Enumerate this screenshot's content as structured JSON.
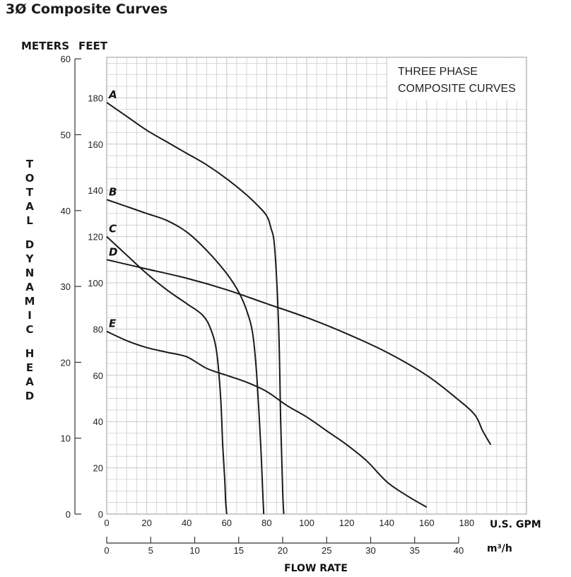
{
  "title": "3Ø Composite Curves",
  "chart_data": {
    "type": "line",
    "title": "3Ø Composite Curves",
    "annotation_lines": [
      "THREE PHASE",
      "COMPOSITE CURVES"
    ],
    "y_left_unit": "METERS",
    "y_right_unit": "FEET",
    "ylabel": "TOTAL DYNAMIC HEAD",
    "xlabel": "FLOW RATE",
    "x_unit_gpm": "U.S. GPM",
    "x_unit_m3h": "m³/h",
    "xlim_gpm": [
      0,
      190
    ],
    "ylim_feet": [
      0,
      195
    ],
    "ylim_meters": [
      0,
      60
    ],
    "meters_ticks": [
      0,
      10,
      20,
      30,
      40,
      50,
      60
    ],
    "feet_ticks": [
      0,
      20,
      40,
      60,
      80,
      100,
      120,
      140,
      160,
      180
    ],
    "gpm_ticks": [
      0,
      20,
      40,
      60,
      80,
      100,
      120,
      140,
      160,
      180
    ],
    "m3h_ticks": [
      0,
      5,
      10,
      15,
      20,
      25,
      30,
      35,
      40
    ],
    "grid": true,
    "series": [
      {
        "name": "A",
        "x": [
          0,
          10,
          20,
          30,
          40,
          50,
          60,
          70,
          76,
          80,
          82,
          84,
          86,
          87,
          88,
          88.5
        ],
        "y": [
          178,
          172,
          166,
          161,
          156,
          151,
          145,
          138,
          133,
          129,
          124,
          115,
          80,
          40,
          10,
          0
        ]
      },
      {
        "name": "B",
        "x": [
          0,
          10,
          20,
          30,
          40,
          50,
          60,
          66,
          70,
          73,
          75,
          77,
          78,
          78.5
        ],
        "y": [
          136,
          133,
          130,
          127,
          122,
          114,
          104,
          96,
          88,
          78,
          60,
          30,
          10,
          0
        ]
      },
      {
        "name": "C",
        "x": [
          0,
          10,
          20,
          30,
          40,
          48,
          52,
          55,
          57,
          58,
          59,
          59.5,
          60
        ],
        "y": [
          120,
          112,
          104,
          97,
          91,
          86,
          80,
          70,
          50,
          30,
          15,
          5,
          0
        ]
      },
      {
        "name": "D",
        "x": [
          0,
          20,
          40,
          60,
          80,
          100,
          120,
          140,
          160,
          175,
          184,
          188,
          192
        ],
        "y": [
          110,
          106,
          102,
          97,
          91,
          85,
          78,
          70,
          60,
          50,
          43,
          36,
          30
        ]
      },
      {
        "name": "E",
        "x": [
          0,
          10,
          20,
          30,
          40,
          50,
          60,
          70,
          80,
          90,
          100,
          110,
          120,
          130,
          140,
          150,
          160
        ],
        "y": [
          79,
          75,
          72,
          70,
          68,
          63,
          60,
          57,
          53,
          47,
          42,
          36,
          30,
          23,
          14,
          8,
          3
        ]
      }
    ]
  }
}
